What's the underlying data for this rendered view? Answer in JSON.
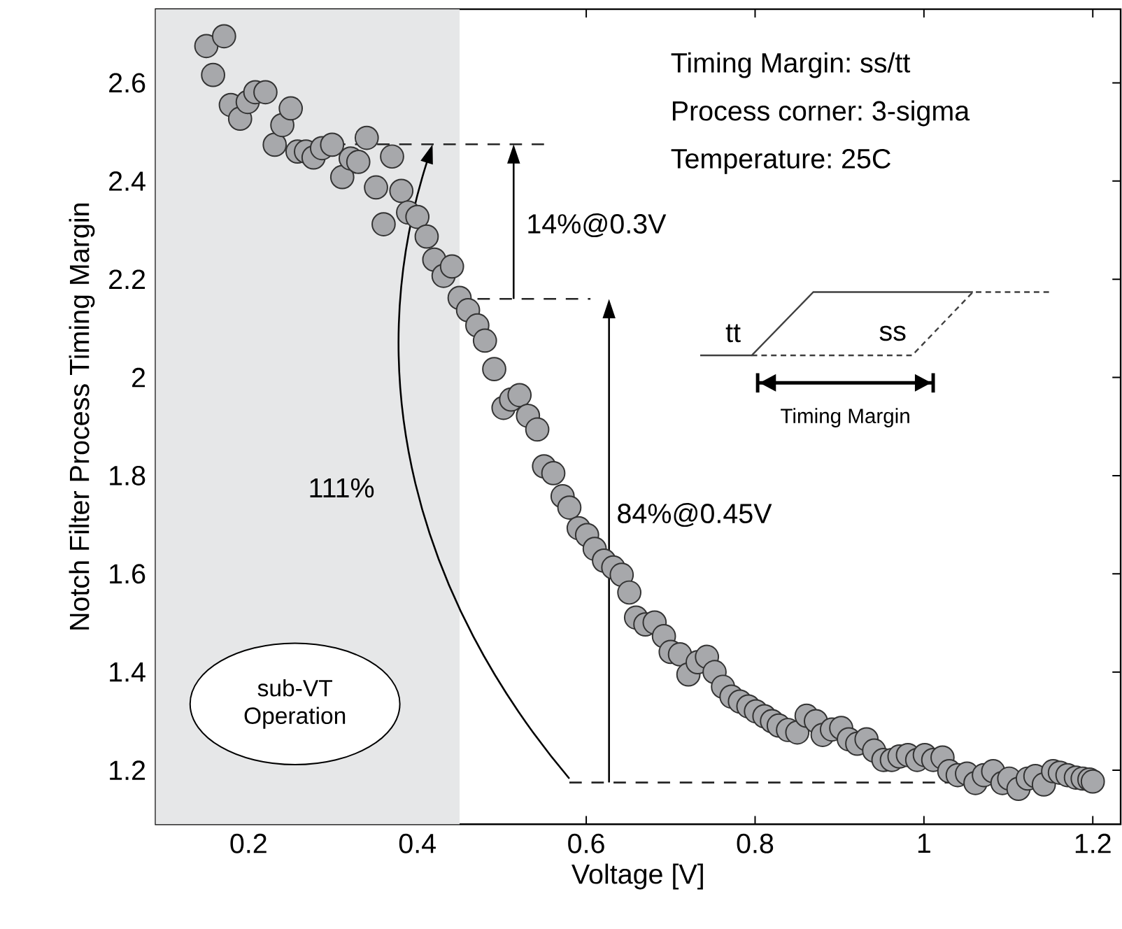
{
  "chart_data": {
    "type": "scatter",
    "xlabel": "Voltage [V]",
    "ylabel": "Notch Filter Process Timing Margin",
    "x": [
      0.15,
      0.158,
      0.171,
      0.179,
      0.19,
      0.199,
      0.208,
      0.22,
      0.231,
      0.24,
      0.25,
      0.258,
      0.268,
      0.277,
      0.287,
      0.299,
      0.311,
      0.321,
      0.33,
      0.34,
      0.351,
      0.36,
      0.37,
      0.381,
      0.389,
      0.4,
      0.411,
      0.42,
      0.431,
      0.441,
      0.45,
      0.46,
      0.471,
      0.48,
      0.491,
      0.502,
      0.511,
      0.521,
      0.531,
      0.542,
      0.55,
      0.561,
      0.572,
      0.58,
      0.591,
      0.601,
      0.61,
      0.621,
      0.632,
      0.642,
      0.651,
      0.659,
      0.67,
      0.681,
      0.692,
      0.7,
      0.711,
      0.721,
      0.732,
      0.743,
      0.752,
      0.762,
      0.772,
      0.782,
      0.792,
      0.801,
      0.811,
      0.82,
      0.828,
      0.839,
      0.85,
      0.861,
      0.872,
      0.88,
      0.891,
      0.902,
      0.911,
      0.921,
      0.932,
      0.941,
      0.952,
      0.962,
      0.971,
      0.981,
      0.992,
      1.001,
      1.011,
      1.022,
      1.03,
      1.04,
      1.051,
      1.061,
      1.071,
      1.082,
      1.093,
      1.101,
      1.112,
      1.123,
      1.132,
      1.142,
      1.153,
      1.161,
      1.17,
      1.18,
      1.188,
      1.196,
      1.2
    ],
    "values": [
      2.675,
      2.616,
      2.695,
      2.555,
      2.527,
      2.561,
      2.581,
      2.581,
      2.474,
      2.514,
      2.548,
      2.46,
      2.46,
      2.448,
      2.467,
      2.474,
      2.408,
      2.446,
      2.439,
      2.488,
      2.387,
      2.312,
      2.45,
      2.38,
      2.336,
      2.327,
      2.287,
      2.24,
      2.207,
      2.226,
      2.162,
      2.137,
      2.106,
      2.075,
      2.017,
      1.938,
      1.955,
      1.964,
      1.922,
      1.894,
      1.819,
      1.805,
      1.758,
      1.735,
      1.693,
      1.679,
      1.651,
      1.627,
      1.613,
      1.598,
      1.562,
      1.511,
      1.497,
      1.501,
      1.473,
      1.441,
      1.436,
      1.395,
      1.42,
      1.431,
      1.4,
      1.37,
      1.35,
      1.34,
      1.33,
      1.32,
      1.31,
      1.3,
      1.291,
      1.282,
      1.277,
      1.311,
      1.3,
      1.272,
      1.283,
      1.286,
      1.263,
      1.254,
      1.263,
      1.24,
      1.221,
      1.221,
      1.228,
      1.231,
      1.221,
      1.231,
      1.221,
      1.226,
      1.198,
      1.19,
      1.193,
      1.174,
      1.19,
      1.198,
      1.174,
      1.183,
      1.162,
      1.183,
      1.188,
      1.171,
      1.198,
      1.195,
      1.19,
      1.185,
      1.183,
      1.181,
      1.177
    ],
    "color": "#a7a8ab",
    "marker": "circle",
    "xlim": [
      0.09,
      1.233
    ],
    "ylim": [
      1.09,
      2.75
    ],
    "xticks": [
      0.2,
      0.4,
      0.6,
      0.8,
      1,
      1.2
    ],
    "yticks": [
      1.2,
      1.4,
      1.6,
      1.8,
      2,
      2.2,
      2.4,
      2.6
    ],
    "bands": [
      {
        "axis": "x",
        "from": 0.09,
        "to": 0.45,
        "label": "sub-VT Operation",
        "color": "#e6e7e8"
      }
    ],
    "ref_lines": [
      {
        "axis": "y",
        "value": 2.475,
        "line_style": "dashed"
      },
      {
        "axis": "y",
        "value": 2.16,
        "line_style": "dashed"
      },
      {
        "axis": "y",
        "value": 1.175,
        "line_style": "dashed"
      }
    ],
    "annotations": [
      "Timing Margin: ss/tt",
      "Process corner: 3-sigma",
      "Temperature: 25C",
      "14%@0.3V",
      "84%@0.45V",
      "111%",
      "tt",
      "ss",
      "Timing Margin"
    ]
  }
}
